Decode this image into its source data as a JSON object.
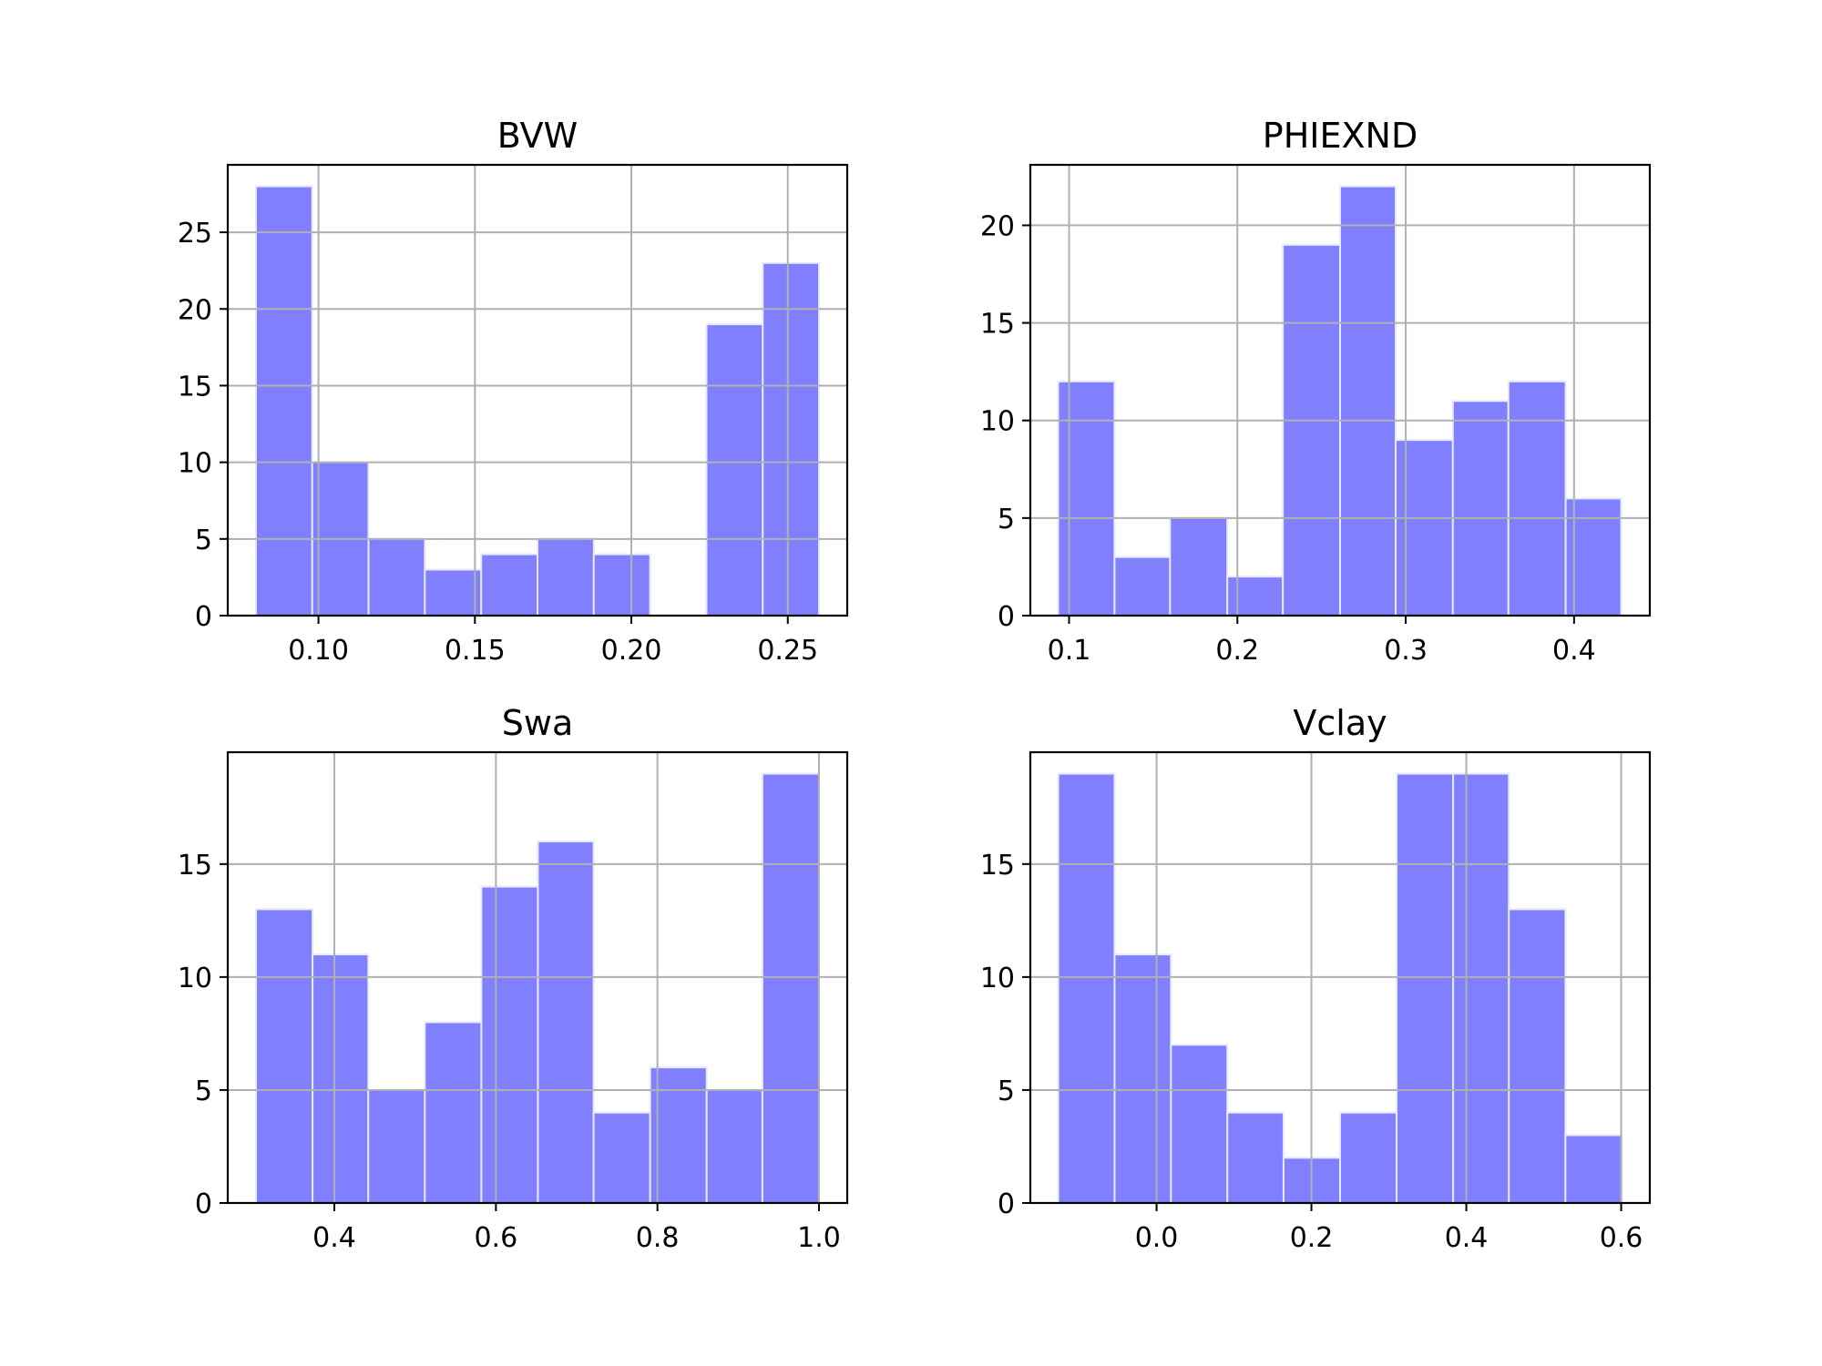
{
  "chart_data": [
    {
      "type": "bar",
      "title": "BVW",
      "bar_color": "#8080ff",
      "bar_edge_color": "#e8e8ff",
      "grid": true,
      "bins": [
        {
          "x0": 0.08,
          "x1": 0.098,
          "count": 28
        },
        {
          "x0": 0.098,
          "x1": 0.116,
          "count": 10
        },
        {
          "x0": 0.116,
          "x1": 0.134,
          "count": 5
        },
        {
          "x0": 0.134,
          "x1": 0.152,
          "count": 3
        },
        {
          "x0": 0.152,
          "x1": 0.17,
          "count": 4
        },
        {
          "x0": 0.17,
          "x1": 0.188,
          "count": 5
        },
        {
          "x0": 0.188,
          "x1": 0.206,
          "count": 4
        },
        {
          "x0": 0.206,
          "x1": 0.224,
          "count": 0
        },
        {
          "x0": 0.224,
          "x1": 0.242,
          "count": 19
        },
        {
          "x0": 0.242,
          "x1": 0.26,
          "count": 23
        }
      ],
      "xlim": [
        0.071,
        0.269
      ],
      "ylim": [
        0,
        29.4
      ],
      "xticks": [
        0.1,
        0.15,
        0.2,
        0.25
      ],
      "xtick_labels": [
        "0.10",
        "0.15",
        "0.20",
        "0.25"
      ],
      "yticks": [
        0,
        5,
        10,
        15,
        20,
        25
      ],
      "ytick_labels": [
        "0",
        "5",
        "10",
        "15",
        "20",
        "25"
      ]
    },
    {
      "type": "bar",
      "title": "PHIEXND",
      "bar_color": "#8080ff",
      "bar_edge_color": "#e8e8ff",
      "grid": true,
      "bins": [
        {
          "x0": 0.0935,
          "x1": 0.127,
          "count": 12
        },
        {
          "x0": 0.127,
          "x1": 0.16,
          "count": 3
        },
        {
          "x0": 0.16,
          "x1": 0.194,
          "count": 5
        },
        {
          "x0": 0.194,
          "x1": 0.227,
          "count": 2
        },
        {
          "x0": 0.227,
          "x1": 0.261,
          "count": 19
        },
        {
          "x0": 0.261,
          "x1": 0.294,
          "count": 22
        },
        {
          "x0": 0.294,
          "x1": 0.328,
          "count": 9
        },
        {
          "x0": 0.328,
          "x1": 0.361,
          "count": 11
        },
        {
          "x0": 0.361,
          "x1": 0.395,
          "count": 12
        },
        {
          "x0": 0.395,
          "x1": 0.428,
          "count": 6
        }
      ],
      "xlim": [
        0.077,
        0.445
      ],
      "ylim": [
        0,
        23.1
      ],
      "xticks": [
        0.1,
        0.2,
        0.3,
        0.4
      ],
      "xtick_labels": [
        "0.1",
        "0.2",
        "0.3",
        "0.4"
      ],
      "yticks": [
        0,
        5,
        10,
        15,
        20
      ],
      "ytick_labels": [
        "0",
        "5",
        "10",
        "15",
        "20"
      ]
    },
    {
      "type": "bar",
      "title": "Swa",
      "bar_color": "#8080ff",
      "bar_edge_color": "#e8e8ff",
      "grid": true,
      "bins": [
        {
          "x0": 0.303,
          "x1": 0.373,
          "count": 13
        },
        {
          "x0": 0.373,
          "x1": 0.442,
          "count": 11
        },
        {
          "x0": 0.442,
          "x1": 0.512,
          "count": 5
        },
        {
          "x0": 0.512,
          "x1": 0.582,
          "count": 8
        },
        {
          "x0": 0.582,
          "x1": 0.652,
          "count": 14
        },
        {
          "x0": 0.652,
          "x1": 0.721,
          "count": 16
        },
        {
          "x0": 0.721,
          "x1": 0.791,
          "count": 4
        },
        {
          "x0": 0.791,
          "x1": 0.861,
          "count": 6
        },
        {
          "x0": 0.861,
          "x1": 0.93,
          "count": 5
        },
        {
          "x0": 0.93,
          "x1": 1.0,
          "count": 19
        }
      ],
      "xlim": [
        0.268,
        1.035
      ],
      "ylim": [
        0,
        19.95
      ],
      "xticks": [
        0.4,
        0.6,
        0.8,
        1.0
      ],
      "xtick_labels": [
        "0.4",
        "0.6",
        "0.8",
        "1.0"
      ],
      "yticks": [
        0,
        5,
        10,
        15
      ],
      "ytick_labels": [
        "0",
        "5",
        "10",
        "15"
      ]
    },
    {
      "type": "bar",
      "title": "Vclay",
      "bar_color": "#8080ff",
      "bar_edge_color": "#e8e8ff",
      "grid": true,
      "bins": [
        {
          "x0": -0.127,
          "x1": -0.0542,
          "count": 19
        },
        {
          "x0": -0.0542,
          "x1": 0.0186,
          "count": 11
        },
        {
          "x0": 0.0186,
          "x1": 0.0914,
          "count": 7
        },
        {
          "x0": 0.0914,
          "x1": 0.164,
          "count": 4
        },
        {
          "x0": 0.164,
          "x1": 0.237,
          "count": 2
        },
        {
          "x0": 0.237,
          "x1": 0.31,
          "count": 4
        },
        {
          "x0": 0.31,
          "x1": 0.383,
          "count": 19
        },
        {
          "x0": 0.383,
          "x1": 0.455,
          "count": 19
        },
        {
          "x0": 0.455,
          "x1": 0.528,
          "count": 13
        },
        {
          "x0": 0.528,
          "x1": 0.601,
          "count": 3
        }
      ],
      "xlim": [
        -0.163,
        0.637
      ],
      "ylim": [
        0,
        19.95
      ],
      "xticks": [
        0.0,
        0.2,
        0.4,
        0.6
      ],
      "xtick_labels": [
        "0.0",
        "0.2",
        "0.4",
        "0.6"
      ],
      "yticks": [
        0,
        5,
        10,
        15
      ],
      "ytick_labels": [
        "0",
        "5",
        "10",
        "15"
      ]
    }
  ]
}
